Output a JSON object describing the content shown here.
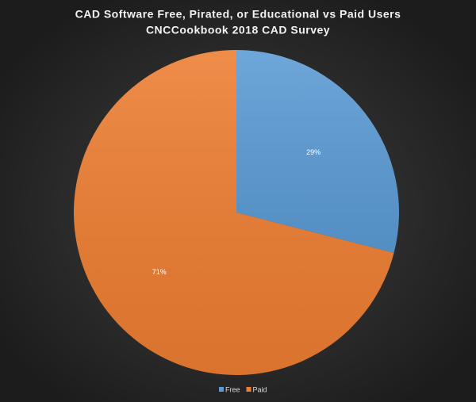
{
  "chart_data": {
    "type": "pie",
    "title": "CAD Software Free, Pirated, or Educational vs Paid Users",
    "subtitle": "CNCCookbook  2018 CAD Survey",
    "categories": [
      "Free",
      "Paid"
    ],
    "values": [
      29,
      71
    ],
    "value_labels": [
      "29%",
      "71%"
    ],
    "colors": [
      "#5b9bd5",
      "#ed7d31"
    ],
    "legend": "bottom"
  }
}
